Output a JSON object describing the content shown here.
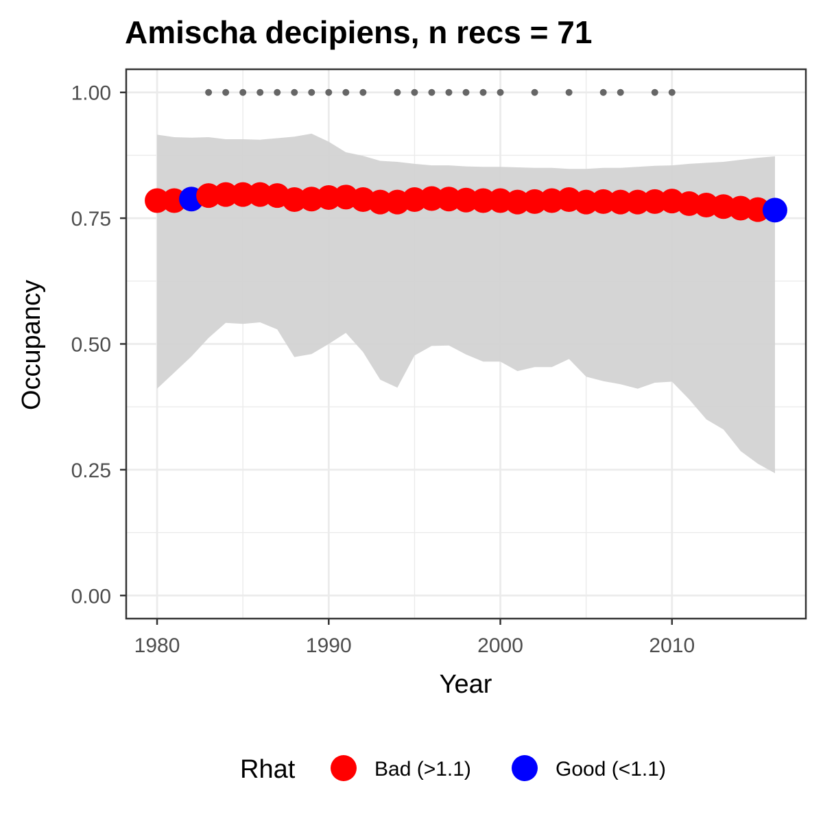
{
  "chart_data": {
    "type": "line",
    "title": "Amischa decipiens, n recs = 71",
    "xlabel": "Year",
    "ylabel": "Occupancy",
    "xlim": [
      1978.2,
      2017.8
    ],
    "ylim": [
      -0.046,
      1.046
    ],
    "x_ticks": [
      1980,
      1990,
      2000,
      2010
    ],
    "x_tick_labels": [
      "1980",
      "1990",
      "2000",
      "2010"
    ],
    "y_ticks": [
      0,
      0.25,
      0.5,
      0.75,
      1.0
    ],
    "y_tick_labels": [
      "0.00",
      "0.25",
      "0.50",
      "0.75",
      "1.00"
    ],
    "grid": true,
    "legend": {
      "title": "Rhat",
      "position": "bottom",
      "entries": [
        {
          "label": "Bad (>1.1)",
          "color": "#ff0000"
        },
        {
          "label": "Good (<1.1)",
          "color": "#0000ff"
        }
      ]
    },
    "colors": {
      "bad": "#ff0000",
      "good": "#0000ff",
      "ribbon": "#d3d3d3",
      "records": "#666666"
    },
    "series": [
      {
        "x": [
          1980,
          1981,
          1982,
          1983,
          1984,
          1985,
          1986,
          1987,
          1988,
          1989,
          1990,
          1991,
          1992,
          1993,
          1994,
          1995,
          1996,
          1997,
          1998,
          1999,
          2000,
          2001,
          2002,
          2003,
          2004,
          2005,
          2006,
          2007,
          2008,
          2009,
          2010,
          2011,
          2012,
          2013,
          2014,
          2015,
          2016
        ],
        "y": [
          0.785,
          0.785,
          0.788,
          0.795,
          0.797,
          0.797,
          0.797,
          0.795,
          0.787,
          0.788,
          0.791,
          0.792,
          0.787,
          0.782,
          0.782,
          0.787,
          0.789,
          0.788,
          0.786,
          0.785,
          0.785,
          0.782,
          0.783,
          0.785,
          0.787,
          0.782,
          0.783,
          0.782,
          0.782,
          0.783,
          0.784,
          0.779,
          0.776,
          0.773,
          0.77,
          0.767,
          0.766
        ],
        "rhat": [
          "Bad (>1.1)",
          "Bad (>1.1)",
          "Good (<1.1)",
          "Bad (>1.1)",
          "Bad (>1.1)",
          "Bad (>1.1)",
          "Bad (>1.1)",
          "Bad (>1.1)",
          "Bad (>1.1)",
          "Bad (>1.1)",
          "Bad (>1.1)",
          "Bad (>1.1)",
          "Bad (>1.1)",
          "Bad (>1.1)",
          "Bad (>1.1)",
          "Bad (>1.1)",
          "Bad (>1.1)",
          "Bad (>1.1)",
          "Bad (>1.1)",
          "Bad (>1.1)",
          "Bad (>1.1)",
          "Bad (>1.1)",
          "Bad (>1.1)",
          "Bad (>1.1)",
          "Bad (>1.1)",
          "Bad (>1.1)",
          "Bad (>1.1)",
          "Bad (>1.1)",
          "Bad (>1.1)",
          "Bad (>1.1)",
          "Bad (>1.1)",
          "Bad (>1.1)",
          "Bad (>1.1)",
          "Bad (>1.1)",
          "Bad (>1.1)",
          "Bad (>1.1)",
          "Good (<1.1)"
        ],
        "upper": [
          0.916,
          0.911,
          0.91,
          0.911,
          0.907,
          0.907,
          0.906,
          0.909,
          0.912,
          0.918,
          0.902,
          0.881,
          0.874,
          0.864,
          0.862,
          0.858,
          0.855,
          0.855,
          0.853,
          0.852,
          0.852,
          0.851,
          0.85,
          0.85,
          0.848,
          0.848,
          0.85,
          0.85,
          0.852,
          0.854,
          0.855,
          0.858,
          0.86,
          0.862,
          0.866,
          0.87,
          0.873
        ],
        "lower": [
          0.411,
          0.443,
          0.475,
          0.512,
          0.542,
          0.54,
          0.543,
          0.529,
          0.474,
          0.48,
          0.5,
          0.522,
          0.484,
          0.429,
          0.413,
          0.477,
          0.496,
          0.497,
          0.479,
          0.465,
          0.465,
          0.446,
          0.454,
          0.454,
          0.47,
          0.435,
          0.426,
          0.42,
          0.411,
          0.423,
          0.425,
          0.39,
          0.35,
          0.33,
          0.287,
          0.262,
          0.243
        ]
      }
    ],
    "record_years": [
      1983,
      1984,
      1985,
      1986,
      1987,
      1988,
      1989,
      1990,
      1991,
      1992,
      1994,
      1995,
      1996,
      1997,
      1998,
      1999,
      2000,
      2002,
      2004,
      2006,
      2007,
      2009,
      2010
    ],
    "record_y": 1.0
  }
}
